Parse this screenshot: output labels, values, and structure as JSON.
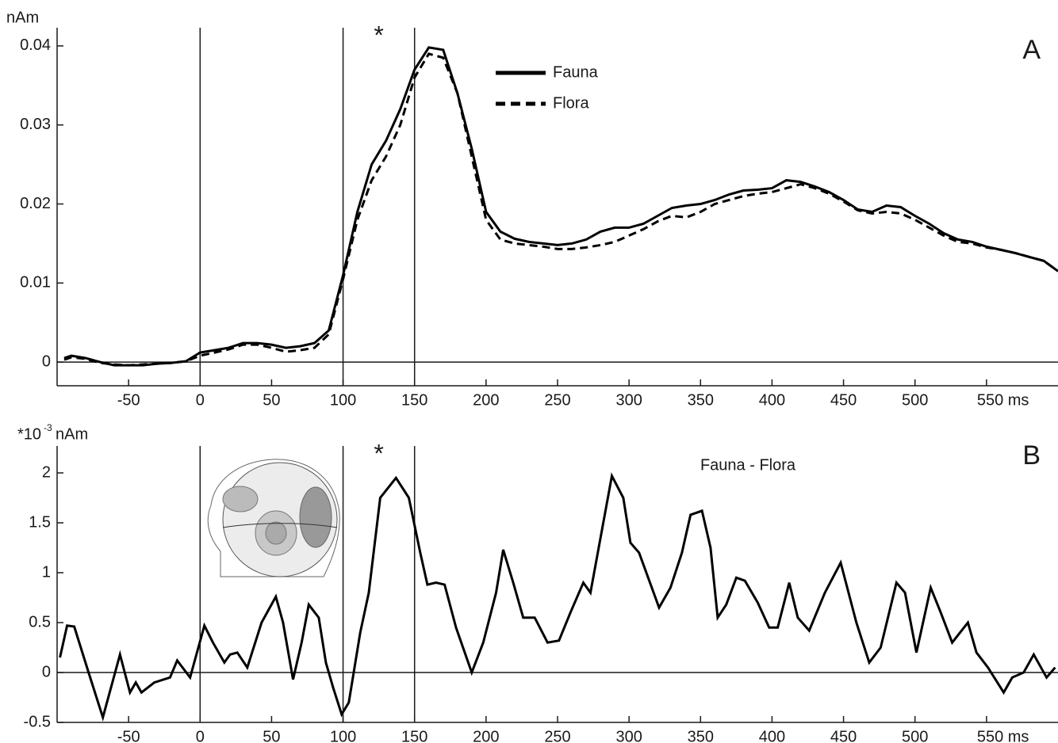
{
  "chart_data": [
    {
      "type": "line",
      "panel_label": "A",
      "asterisk": "*",
      "ylabel": "nAm",
      "legend": true,
      "xlim": [
        -100,
        600
      ],
      "ylim": [
        -0.003,
        0.0423
      ],
      "xticks": [
        -50,
        0,
        50,
        100,
        150,
        200,
        250,
        300,
        350,
        400,
        450,
        500,
        {
          "value": 550,
          "label": "550 ms"
        }
      ],
      "yticks": [
        0,
        0.01,
        0.02,
        0.03,
        0.04
      ],
      "reference_lines": [
        0,
        100,
        150
      ],
      "x": [
        -95,
        -90,
        -80,
        -70,
        -60,
        -50,
        -40,
        -30,
        -20,
        -10,
        0,
        10,
        20,
        30,
        40,
        50,
        60,
        70,
        80,
        90,
        100,
        110,
        120,
        130,
        140,
        150,
        160,
        170,
        180,
        190,
        200,
        210,
        220,
        230,
        240,
        250,
        260,
        270,
        280,
        290,
        300,
        310,
        320,
        330,
        340,
        350,
        360,
        370,
        380,
        390,
        400,
        410,
        420,
        430,
        440,
        450,
        460,
        470,
        480,
        490,
        500,
        510,
        520,
        530,
        540,
        550,
        560,
        570,
        580,
        590,
        600
      ],
      "series": [
        {
          "name": "Fauna",
          "color": "#000000",
          "style": "solid",
          "values": [
            0.0005,
            0.0008,
            0.0005,
            0.0,
            -0.0004,
            -0.0004,
            -0.0004,
            -0.0002,
            -0.0001,
            0.0001,
            0.0012,
            0.0015,
            0.0018,
            0.0024,
            0.0024,
            0.0022,
            0.0018,
            0.002,
            0.0024,
            0.004,
            0.011,
            0.019,
            0.025,
            0.028,
            0.032,
            0.037,
            0.0398,
            0.0395,
            0.034,
            0.027,
            0.019,
            0.0165,
            0.0156,
            0.0152,
            0.015,
            0.0148,
            0.015,
            0.0155,
            0.0165,
            0.017,
            0.017,
            0.0175,
            0.0185,
            0.0195,
            0.0198,
            0.02,
            0.0205,
            0.0212,
            0.0217,
            0.0218,
            0.022,
            0.023,
            0.0228,
            0.0222,
            0.0215,
            0.0205,
            0.0193,
            0.019,
            0.0198,
            0.0196,
            0.0185,
            0.0175,
            0.0163,
            0.0155,
            0.0152,
            0.0146,
            0.0142,
            0.0138,
            0.0133,
            0.0128,
            0.0115
          ]
        },
        {
          "name": "Flora",
          "color": "#000000",
          "style": "dashed",
          "values": [
            0.0003,
            0.0006,
            0.0004,
            -0.0001,
            -0.0003,
            -0.0004,
            -0.0003,
            -0.0002,
            -0.0001,
            0.0001,
            0.0008,
            0.0012,
            0.0016,
            0.0022,
            0.0022,
            0.0018,
            0.0013,
            0.0015,
            0.0018,
            0.0035,
            0.0105,
            0.018,
            0.023,
            0.026,
            0.03,
            0.036,
            0.039,
            0.0385,
            0.034,
            0.026,
            0.018,
            0.0155,
            0.015,
            0.0148,
            0.0146,
            0.0143,
            0.0143,
            0.0145,
            0.0148,
            0.0152,
            0.016,
            0.0168,
            0.0178,
            0.0185,
            0.0183,
            0.019,
            0.02,
            0.0205,
            0.021,
            0.0213,
            0.0215,
            0.022,
            0.0225,
            0.022,
            0.0213,
            0.0203,
            0.0192,
            0.0188,
            0.019,
            0.0188,
            0.018,
            0.017,
            0.016,
            0.0152,
            0.015,
            0.0145,
            0.0142,
            0.0138,
            0.0133,
            0.0128,
            0.0115
          ]
        }
      ]
    },
    {
      "type": "line",
      "panel_label": "B",
      "asterisk": "*",
      "ylabel": "*10",
      "ylabel_exponent": "-3",
      "ylabel_unit": "nAm",
      "legend": false,
      "xlim": [
        -100,
        600
      ],
      "ylim": [
        -0.5,
        2.27
      ],
      "xticks": [
        -50,
        0,
        50,
        100,
        150,
        200,
        250,
        300,
        350,
        400,
        450,
        500,
        {
          "value": 550,
          "label": "550 ms"
        }
      ],
      "yticks": [
        -0.5,
        0,
        0.5,
        1,
        1.5,
        2
      ],
      "reference_lines": [
        0,
        100,
        150
      ],
      "x": [
        -98,
        -93,
        -88,
        -78,
        -68,
        -56,
        -49,
        -45,
        -41,
        -32,
        -21,
        -16,
        -7,
        3,
        9,
        17,
        21,
        26,
        33,
        43,
        53,
        58,
        65,
        71,
        76,
        83,
        88,
        93,
        99,
        104,
        112,
        118,
        126,
        137,
        146,
        154,
        159,
        165,
        171,
        179,
        190,
        198,
        207,
        212,
        219,
        226,
        234,
        243,
        251,
        259,
        268,
        273,
        288,
        296,
        301,
        307,
        321,
        329,
        337,
        343,
        351,
        357,
        362,
        368,
        375,
        381,
        390,
        398,
        404,
        412,
        418,
        426,
        437,
        448,
        459,
        468,
        476,
        487,
        493,
        501,
        511,
        518,
        526,
        537,
        543,
        551,
        562,
        568,
        576,
        583,
        592,
        598
      ],
      "series": [
        {
          "name": "Fauna - Flora",
          "color": "#000000",
          "style": "solid",
          "values": [
            0.15,
            0.47,
            0.46,
            0.0,
            -0.45,
            0.18,
            -0.2,
            -0.1,
            -0.2,
            -0.1,
            -0.05,
            0.12,
            -0.05,
            0.47,
            0.3,
            0.1,
            0.18,
            0.2,
            0.05,
            0.5,
            0.76,
            0.5,
            -0.07,
            0.3,
            0.68,
            0.55,
            0.1,
            -0.15,
            -0.42,
            -0.3,
            0.4,
            0.8,
            1.75,
            1.95,
            1.75,
            1.2,
            0.88,
            0.9,
            0.88,
            0.45,
            0.0,
            0.3,
            0.8,
            1.23,
            0.9,
            0.55,
            0.55,
            0.3,
            0.32,
            0.6,
            0.9,
            0.8,
            1.97,
            1.75,
            1.3,
            1.2,
            0.65,
            0.85,
            1.2,
            1.58,
            1.62,
            1.25,
            0.55,
            0.68,
            0.95,
            0.92,
            0.7,
            0.45,
            0.45,
            0.9,
            0.55,
            0.42,
            0.8,
            1.1,
            0.5,
            0.1,
            0.25,
            0.9,
            0.8,
            0.2,
            0.85,
            0.6,
            0.3,
            0.5,
            0.2,
            0.05,
            -0.2,
            -0.05,
            0.0,
            0.18,
            -0.05,
            0.05
          ]
        }
      ]
    }
  ]
}
